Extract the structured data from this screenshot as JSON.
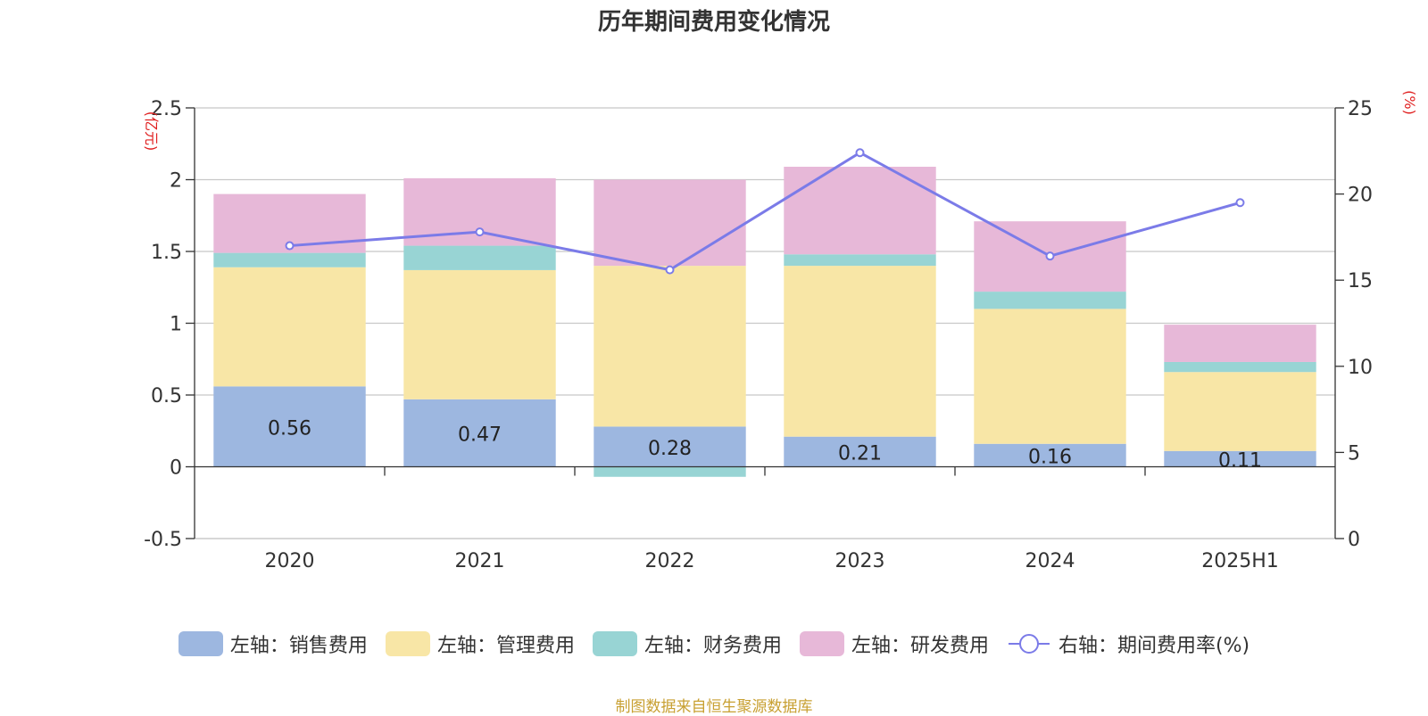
{
  "chart_data": {
    "type": "bar",
    "title": "历年期间费用变化情况",
    "categories": [
      "2020",
      "2021",
      "2022",
      "2023",
      "2024",
      "2025H1"
    ],
    "stacked": true,
    "left_axis": {
      "unit_label": "(亿元)",
      "ylim": [
        -0.5,
        2.5
      ],
      "ticks": [
        "2.5",
        "2",
        "1.5",
        "1",
        "0.5",
        "0",
        "-0.5"
      ],
      "tick_values": [
        2.5,
        2,
        1.5,
        1,
        0.5,
        0,
        -0.5
      ]
    },
    "right_axis": {
      "unit_label": "(%)",
      "ylim": [
        0,
        25
      ],
      "ticks": [
        "25",
        "20",
        "15",
        "10",
        "5",
        "0"
      ],
      "tick_values": [
        25,
        20,
        15,
        10,
        5,
        0
      ]
    },
    "series": [
      {
        "name": "左轴：销售费用",
        "axis": "left",
        "type": "bar",
        "color": "#9db7e0",
        "values": [
          0.56,
          0.47,
          0.28,
          0.21,
          0.16,
          0.11
        ],
        "data_labels": [
          "0.56",
          "0.47",
          "0.28",
          "0.21",
          "0.16",
          "0.11"
        ]
      },
      {
        "name": "左轴：管理费用",
        "axis": "left",
        "type": "bar",
        "color": "#f8e6a6",
        "values": [
          0.83,
          0.9,
          1.12,
          1.19,
          0.94,
          0.55
        ]
      },
      {
        "name": "左轴：财务费用",
        "axis": "left",
        "type": "bar",
        "color": "#98d4d4",
        "values": [
          0.1,
          0.17,
          -0.07,
          0.08,
          0.12,
          0.07
        ]
      },
      {
        "name": "左轴：研发费用",
        "axis": "left",
        "type": "bar",
        "color": "#e7b8d8",
        "values": [
          0.41,
          0.47,
          0.6,
          0.61,
          0.49,
          0.26
        ]
      },
      {
        "name": "右轴：期间费用率(%)",
        "axis": "right",
        "type": "line",
        "color": "#7b7be8",
        "values": [
          17.0,
          17.8,
          15.6,
          22.4,
          16.4,
          19.5
        ]
      }
    ],
    "grid": true,
    "legend_position": "bottom"
  },
  "source_note": "制图数据来自恒生聚源数据库"
}
